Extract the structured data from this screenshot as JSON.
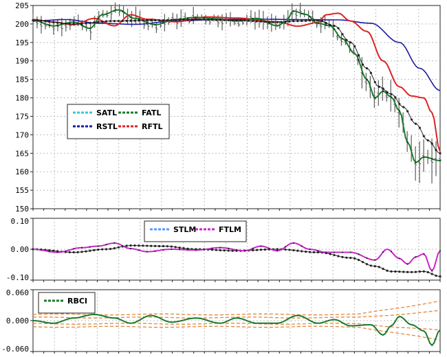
{
  "chart_data": [
    {
      "type": "line",
      "title": "",
      "ylim": [
        150,
        205
      ],
      "y_ticks": [
        "205",
        "200",
        "195",
        "190",
        "185",
        "180",
        "175",
        "170",
        "165",
        "160",
        "155",
        "150"
      ],
      "grid": true,
      "legend_placement": "center-left",
      "legend": [
        {
          "label": "SATL",
          "color": "#33cccc"
        },
        {
          "label": "FATL",
          "color": "#1a7a2a"
        },
        {
          "label": "RSTL",
          "color": "#1a1aa0"
        },
        {
          "label": "RFTL",
          "color": "#dd2222"
        }
      ],
      "n_points": 100,
      "price_color": "#5a5a5a",
      "series": [
        {
          "name": "RSTL",
          "color": "#1a1aa0",
          "anchors": [
            [
              0,
              200.8
            ],
            [
              8,
              201.2
            ],
            [
              16,
              200.2
            ],
            [
              25,
              199.9
            ],
            [
              35,
              200.8
            ],
            [
              45,
              201.2
            ],
            [
              55,
              201.3
            ],
            [
              65,
              201.2
            ],
            [
              75,
              201.1
            ],
            [
              83,
              200.2
            ],
            [
              90,
              195
            ],
            [
              95,
              188
            ],
            [
              100,
              182
            ]
          ]
        },
        {
          "name": "RFTL",
          "color": "#dd2222",
          "anchors": [
            [
              0,
              201.2
            ],
            [
              5,
              200.5
            ],
            [
              10,
              199.8
            ],
            [
              15,
              201.5
            ],
            [
              20,
              199.5
            ],
            [
              24,
              202.5
            ],
            [
              28,
              201.3
            ],
            [
              35,
              200.6
            ],
            [
              43,
              201.9
            ],
            [
              50,
              201.6
            ],
            [
              60,
              200.6
            ],
            [
              65,
              199.4
            ],
            [
              70,
              200.4
            ],
            [
              72,
              202.5
            ],
            [
              75,
              202.9
            ],
            [
              78,
              200.8
            ],
            [
              82,
              198
            ],
            [
              86,
              190
            ],
            [
              90,
              183
            ],
            [
              93,
              180.5
            ],
            [
              96,
              180
            ],
            [
              98,
              176
            ],
            [
              100,
              165.5
            ]
          ]
        },
        {
          "name": "FATL",
          "color": "#1a7a2a",
          "anchors": [
            [
              0,
              201.0
            ],
            [
              5,
              199.5
            ],
            [
              10,
              200.5
            ],
            [
              14,
              198.8
            ],
            [
              17,
              202.5
            ],
            [
              21,
              203.8
            ],
            [
              25,
              201.5
            ],
            [
              30,
              199.8
            ],
            [
              35,
              201.2
            ],
            [
              40,
              201.8
            ],
            [
              45,
              201.4
            ],
            [
              50,
              200.8
            ],
            [
              55,
              201.5
            ],
            [
              60,
              199.5
            ],
            [
              62,
              200.5
            ],
            [
              64,
              203.5
            ],
            [
              67,
              202.6
            ],
            [
              70,
              200.2
            ],
            [
              73,
              199.5
            ],
            [
              76,
              196
            ],
            [
              79,
              192
            ],
            [
              82,
              185
            ],
            [
              84,
              180
            ],
            [
              86,
              181.8
            ],
            [
              88,
              180.2
            ],
            [
              90,
              176.5
            ],
            [
              92,
              168
            ],
            [
              94,
              162.5
            ],
            [
              96,
              164
            ],
            [
              100,
              163
            ]
          ]
        },
        {
          "name": "SATL",
          "color": "#222222",
          "anchors": [
            [
              0,
              201
            ],
            [
              10,
              200
            ],
            [
              20,
              200.8
            ],
            [
              30,
              201
            ],
            [
              40,
              201.2
            ],
            [
              50,
              201
            ],
            [
              60,
              200.5
            ],
            [
              65,
              200.8
            ],
            [
              70,
              201
            ],
            [
              74,
              199.5
            ],
            [
              78,
              195
            ],
            [
              82,
              188
            ],
            [
              85,
              183
            ],
            [
              88,
              181
            ],
            [
              91,
              177.5
            ],
            [
              94,
              173
            ],
            [
              97,
              168.5
            ],
            [
              100,
              165
            ]
          ]
        }
      ]
    },
    {
      "type": "line",
      "ylim": [
        -0.1,
        0.1
      ],
      "y_ticks": [
        "0.10",
        "0.00",
        "-0.10"
      ],
      "grid": true,
      "legend_placement": "top-center",
      "legend": [
        {
          "label": "STLM",
          "color": "#5599ff"
        },
        {
          "label": "FTLM",
          "color": "#cc22cc"
        }
      ],
      "series": [
        {
          "name": "STLM",
          "color": "#222222",
          "anchors": [
            [
              0,
              0
            ],
            [
              10,
              -0.01
            ],
            [
              18,
              0
            ],
            [
              24,
              0.012
            ],
            [
              32,
              0.01
            ],
            [
              40,
              0.0
            ],
            [
              50,
              -0.005
            ],
            [
              60,
              0.0
            ],
            [
              70,
              -0.01
            ],
            [
              78,
              -0.028
            ],
            [
              84,
              -0.055
            ],
            [
              88,
              -0.072
            ],
            [
              93,
              -0.074
            ],
            [
              96,
              -0.072
            ],
            [
              100,
              -0.088
            ]
          ]
        },
        {
          "name": "FTLM",
          "color": "#cc22cc",
          "anchors": [
            [
              0,
              0
            ],
            [
              6,
              -0.01
            ],
            [
              12,
              0.005
            ],
            [
              16,
              0.01
            ],
            [
              20,
              0.02
            ],
            [
              24,
              0.002
            ],
            [
              28,
              -0.008
            ],
            [
              34,
              0.0
            ],
            [
              40,
              -0.003
            ],
            [
              46,
              0.005
            ],
            [
              52,
              -0.005
            ],
            [
              56,
              0.01
            ],
            [
              60,
              -0.005
            ],
            [
              64,
              0.02
            ],
            [
              68,
              0.0
            ],
            [
              72,
              -0.01
            ],
            [
              78,
              -0.01
            ],
            [
              84,
              -0.035
            ],
            [
              87,
              0.0
            ],
            [
              90,
              -0.03
            ],
            [
              92,
              -0.048
            ],
            [
              94,
              -0.025
            ],
            [
              96,
              -0.015
            ],
            [
              98,
              -0.07
            ],
            [
              100,
              -0.005
            ]
          ]
        }
      ]
    },
    {
      "type": "line",
      "ylim": [
        -0.06,
        0.06
      ],
      "y_ticks": [
        "0.060",
        "0.000",
        "-0.060"
      ],
      "grid": true,
      "legend_placement": "top-left",
      "legend": [
        {
          "label": "RBCI",
          "color": "#1a7a2a"
        }
      ],
      "band_color": "#e2873a",
      "series": [
        {
          "name": "RBCI",
          "color": "#1a7a2a",
          "anchors": [
            [
              0,
              0
            ],
            [
              5,
              -0.005
            ],
            [
              10,
              0.005
            ],
            [
              15,
              0.012
            ],
            [
              20,
              0.005
            ],
            [
              24,
              -0.005
            ],
            [
              29,
              0.01
            ],
            [
              34,
              -0.003
            ],
            [
              40,
              0.005
            ],
            [
              46,
              -0.005
            ],
            [
              50,
              0.005
            ],
            [
              55,
              -0.005
            ],
            [
              60,
              -0.005
            ],
            [
              65,
              0.01
            ],
            [
              70,
              -0.005
            ],
            [
              74,
              0.002
            ],
            [
              78,
              -0.01
            ],
            [
              83,
              -0.008
            ],
            [
              86,
              -0.028
            ],
            [
              88,
              -0.01
            ],
            [
              90,
              0.008
            ],
            [
              93,
              -0.008
            ],
            [
              96,
              -0.02
            ],
            [
              98,
              -0.048
            ],
            [
              100,
              -0.018
            ]
          ]
        }
      ]
    }
  ]
}
